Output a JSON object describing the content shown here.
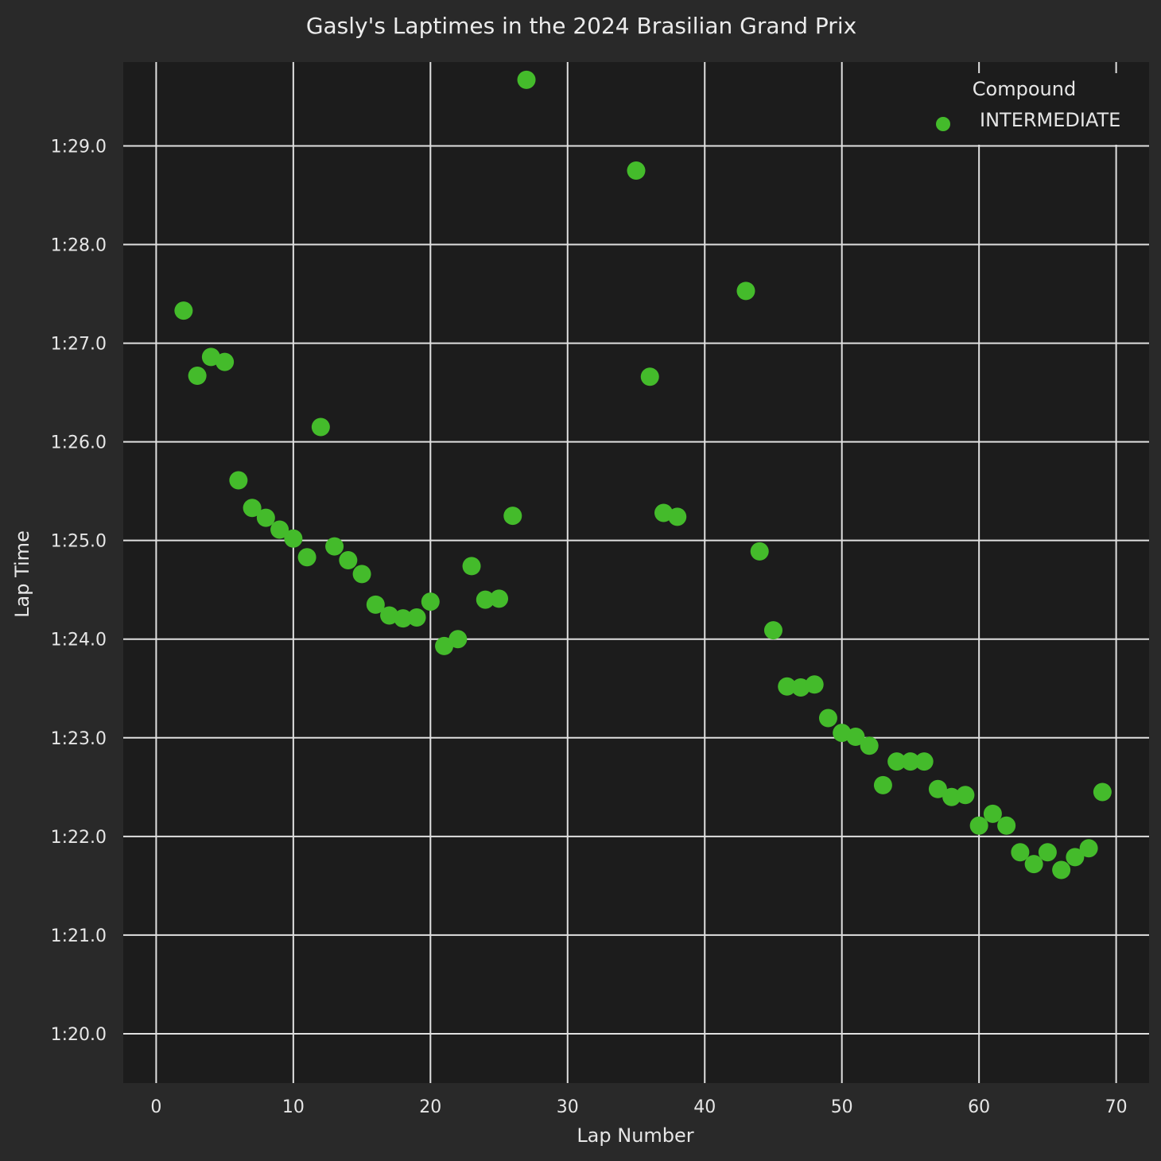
{
  "chart_data": {
    "type": "scatter",
    "title": "Gasly's Laptimes in the 2024 Brasilian Grand Prix",
    "xlabel": "Lap Number",
    "ylabel": "Lap Time",
    "xlim": [
      -2.4,
      72.4
    ],
    "ylim": [
      79.5,
      89.85
    ],
    "x_ticks": [
      0,
      10,
      20,
      30,
      40,
      50,
      60,
      70
    ],
    "x_tick_labels": [
      "0",
      "10",
      "20",
      "30",
      "40",
      "50",
      "60",
      "70"
    ],
    "y_ticks": [
      80,
      81,
      82,
      83,
      84,
      85,
      86,
      87,
      88,
      89
    ],
    "y_tick_labels": [
      "1:20.0",
      "1:21.0",
      "1:22.0",
      "1:23.0",
      "1:24.0",
      "1:25.0",
      "1:26.0",
      "1:27.0",
      "1:28.0",
      "1:29.0"
    ],
    "grid": true,
    "legend": {
      "title": "Compound",
      "placement": "top-right",
      "entries": [
        "INTERMEDIATE"
      ]
    },
    "colors": {
      "page_bg": "#292929",
      "plot_bg": "#1c1c1c",
      "marker": "#44bb2b",
      "grid": "#e0e0e0",
      "text": "#e6e6e6"
    },
    "series": [
      {
        "name": "INTERMEDIATE",
        "x": [
          2,
          3,
          4,
          5,
          6,
          7,
          8,
          9,
          10,
          11,
          12,
          13,
          14,
          15,
          16,
          17,
          18,
          19,
          20,
          21,
          22,
          23,
          24,
          25,
          26,
          27,
          35,
          36,
          37,
          38,
          43,
          44,
          45,
          46,
          47,
          48,
          49,
          50,
          51,
          52,
          53,
          54,
          55,
          56,
          57,
          58,
          59,
          60,
          61,
          62,
          63,
          64,
          65,
          66,
          67,
          68,
          69
        ],
        "y": [
          87.33,
          86.67,
          86.86,
          86.81,
          85.61,
          85.33,
          85.23,
          85.11,
          85.02,
          84.83,
          86.15,
          84.94,
          84.8,
          84.66,
          84.35,
          84.24,
          84.21,
          84.22,
          84.38,
          83.93,
          84.0,
          84.74,
          84.4,
          84.41,
          85.25,
          89.67,
          88.75,
          86.66,
          85.28,
          85.24,
          87.53,
          84.89,
          84.09,
          83.52,
          83.51,
          83.54,
          83.2,
          83.05,
          83.01,
          82.92,
          82.52,
          82.76,
          82.76,
          82.76,
          82.48,
          82.4,
          82.42,
          82.11,
          82.23,
          82.11,
          81.84,
          81.72,
          81.84,
          81.66,
          81.79,
          81.88,
          82.45
        ]
      }
    ]
  }
}
